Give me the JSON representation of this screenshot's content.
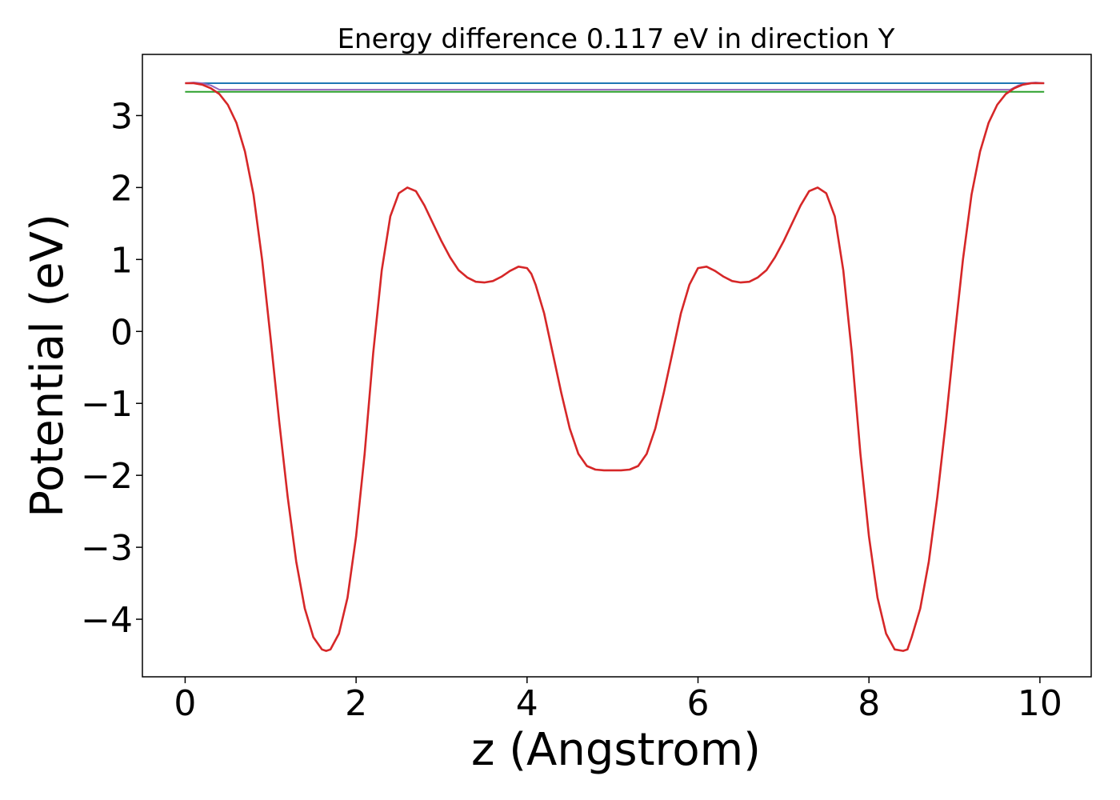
{
  "chart_data": {
    "type": "line",
    "title": "Energy difference 0.117 eV in direction Y",
    "xlabel": "z (Angstrom)",
    "ylabel": "Potential (eV)",
    "xlim": [
      -0.5,
      10.6
    ],
    "ylim": [
      -4.8,
      3.85
    ],
    "xticks": [
      0,
      2,
      4,
      6,
      8,
      10
    ],
    "xtick_labels": [
      "0",
      "2",
      "4",
      "6",
      "8",
      "10"
    ],
    "yticks": [
      -4,
      -3,
      -2,
      -1,
      0,
      1,
      2,
      3
    ],
    "ytick_labels": [
      "−4",
      "−3",
      "−2",
      "−1",
      "0",
      "1",
      "2",
      "3"
    ],
    "grid": false,
    "series": [
      {
        "color": "#1f77b4",
        "x": [
          0,
          10.05
        ],
        "y": [
          3.45,
          3.45
        ]
      },
      {
        "color": "#2ca02c",
        "x": [
          0,
          10.05
        ],
        "y": [
          3.33,
          3.33
        ]
      },
      {
        "color": "#9467bd",
        "x": [
          0,
          0.1,
          0.2,
          0.3,
          0.4,
          9.65,
          9.75,
          9.85,
          9.95,
          10.05
        ],
        "y": [
          3.45,
          3.46,
          3.45,
          3.42,
          3.36,
          3.36,
          3.42,
          3.45,
          3.46,
          3.45
        ]
      },
      {
        "color": "#d62728",
        "x": [
          0,
          0.1,
          0.2,
          0.3,
          0.4,
          0.5,
          0.6,
          0.7,
          0.8,
          0.9,
          1.0,
          1.1,
          1.2,
          1.3,
          1.4,
          1.5,
          1.6,
          1.65,
          1.7,
          1.8,
          1.9,
          2.0,
          2.1,
          2.2,
          2.3,
          2.4,
          2.5,
          2.6,
          2.7,
          2.8,
          2.9,
          3.0,
          3.1,
          3.2,
          3.3,
          3.4,
          3.5,
          3.6,
          3.7,
          3.8,
          3.9,
          4.0,
          4.05,
          4.1,
          4.2,
          4.3,
          4.4,
          4.5,
          4.6,
          4.7,
          4.8,
          4.9,
          5.0,
          5.1,
          5.2,
          5.3,
          5.4,
          5.5,
          5.6,
          5.7,
          5.8,
          5.9,
          6.0,
          6.1,
          6.2,
          6.3,
          6.4,
          6.5,
          6.6,
          6.7,
          6.8,
          6.9,
          7.0,
          7.1,
          7.2,
          7.3,
          7.4,
          7.5,
          7.6,
          7.7,
          7.8,
          7.9,
          8.0,
          8.1,
          8.2,
          8.3,
          8.4,
          8.45,
          8.5,
          8.6,
          8.7,
          8.8,
          8.9,
          9.0,
          9.1,
          9.2,
          9.3,
          9.4,
          9.5,
          9.6,
          9.7,
          9.8,
          9.9,
          10.05
        ],
        "y": [
          3.45,
          3.45,
          3.43,
          3.38,
          3.3,
          3.15,
          2.9,
          2.5,
          1.9,
          1.0,
          -0.1,
          -1.25,
          -2.3,
          -3.2,
          -3.85,
          -4.25,
          -4.42,
          -4.44,
          -4.42,
          -4.2,
          -3.7,
          -2.85,
          -1.7,
          -0.3,
          0.85,
          1.6,
          1.92,
          2.0,
          1.95,
          1.75,
          1.5,
          1.25,
          1.03,
          0.85,
          0.75,
          0.69,
          0.68,
          0.7,
          0.76,
          0.84,
          0.9,
          0.88,
          0.8,
          0.65,
          0.25,
          -0.3,
          -0.85,
          -1.35,
          -1.7,
          -1.87,
          -1.92,
          -1.93,
          -1.93,
          -1.93,
          -1.92,
          -1.87,
          -1.7,
          -1.35,
          -0.85,
          -0.3,
          0.25,
          0.65,
          0.88,
          0.9,
          0.84,
          0.76,
          0.7,
          0.68,
          0.69,
          0.75,
          0.85,
          1.03,
          1.25,
          1.5,
          1.75,
          1.95,
          2.0,
          1.92,
          1.6,
          0.85,
          -0.3,
          -1.7,
          -2.85,
          -3.7,
          -4.2,
          -4.42,
          -4.44,
          -4.42,
          -4.25,
          -3.85,
          -3.2,
          -2.3,
          -1.25,
          -0.1,
          1.0,
          1.9,
          2.5,
          2.9,
          3.15,
          3.3,
          3.38,
          3.43,
          3.45,
          3.45
        ]
      }
    ]
  }
}
